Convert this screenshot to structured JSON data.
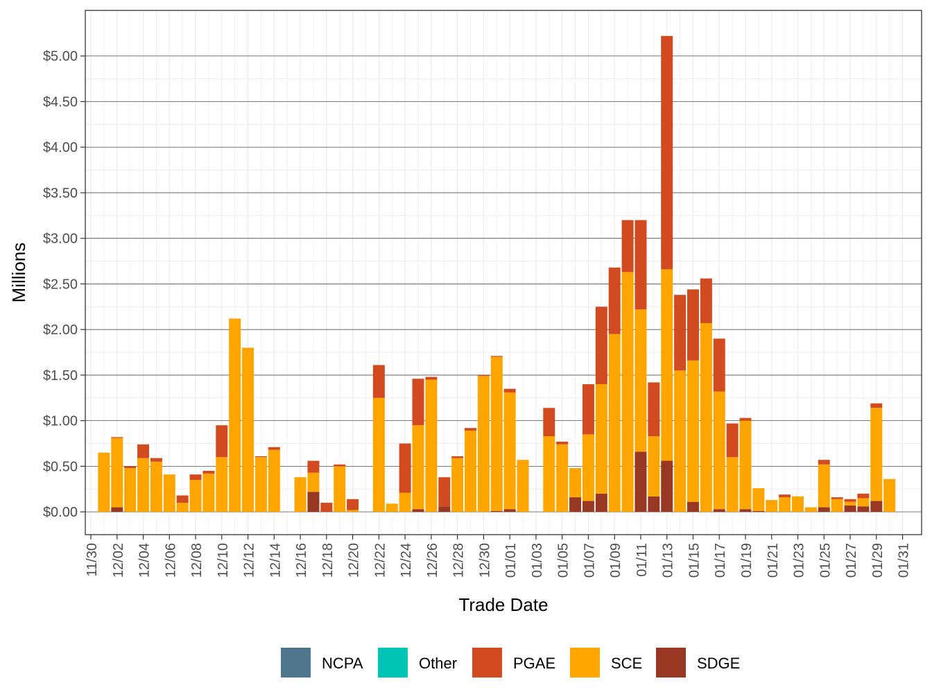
{
  "chart_data": {
    "type": "bar",
    "stacked": true,
    "xlabel": "Trade Date",
    "ylabel": "Millions",
    "ylim": [
      -0.25,
      5.5
    ],
    "y_ticks": [
      0,
      0.5,
      1,
      1.5,
      2,
      2.5,
      3,
      3.5,
      4,
      4.5,
      5
    ],
    "y_tick_labels": [
      "$0.00",
      "$0.50",
      "$1.00",
      "$1.50",
      "$2.00",
      "$2.50",
      "$3.00",
      "$3.50",
      "$4.00",
      "$4.50",
      "$5.00"
    ],
    "x_tick_labels": [
      "11/30",
      "12/02",
      "12/04",
      "12/06",
      "12/08",
      "12/10",
      "12/12",
      "12/14",
      "12/16",
      "12/18",
      "12/20",
      "12/22",
      "12/24",
      "12/26",
      "12/28",
      "12/30",
      "01/01",
      "01/03",
      "01/05",
      "01/07",
      "01/09",
      "01/11",
      "01/13",
      "01/15",
      "01/17",
      "01/19",
      "01/21",
      "01/23",
      "01/25",
      "01/27",
      "01/29",
      "01/31"
    ],
    "grid": true,
    "legend_position": "bottom",
    "colors": {
      "NCPA": "#4e758c",
      "Other": "#00c5b5",
      "PGAE": "#d24b20",
      "SCE": "#ffa500",
      "SDGE": "#983822"
    },
    "categories": [
      "12/01",
      "12/02",
      "12/03",
      "12/04",
      "12/05",
      "12/06",
      "12/07",
      "12/08",
      "12/09",
      "12/10",
      "12/11",
      "12/12",
      "12/13",
      "12/14",
      "12/15",
      "12/16",
      "12/17",
      "12/18",
      "12/19",
      "12/20",
      "12/21",
      "12/22",
      "12/23",
      "12/24",
      "12/25",
      "12/26",
      "12/27",
      "12/28",
      "12/29",
      "12/30",
      "12/31",
      "01/01",
      "01/02",
      "01/03",
      "01/04",
      "01/05",
      "01/06",
      "01/07",
      "01/08",
      "01/09",
      "01/10",
      "01/11",
      "01/12",
      "01/13",
      "01/14",
      "01/15",
      "01/16",
      "01/17",
      "01/18",
      "01/19",
      "01/20",
      "01/21",
      "01/22",
      "01/23",
      "01/24",
      "01/25",
      "01/26",
      "01/27",
      "01/28",
      "01/29",
      "01/30"
    ],
    "series": [
      {
        "name": "NCPA",
        "values": [
          0,
          0,
          0,
          0,
          0,
          0,
          0,
          0,
          0,
          0,
          0,
          0,
          0,
          0,
          0,
          0,
          0,
          0,
          0,
          0,
          0,
          0,
          0,
          0,
          0,
          0,
          0,
          0,
          0,
          0,
          0,
          0,
          0,
          0,
          0,
          0,
          0,
          0,
          0,
          0,
          0,
          0,
          0,
          0,
          0,
          0,
          0,
          0,
          0,
          0,
          0,
          0,
          0,
          0,
          0,
          0,
          0,
          0,
          0,
          0,
          0
        ]
      },
      {
        "name": "Other",
        "values": [
          0,
          0,
          0,
          0,
          0,
          0,
          0,
          0,
          0,
          0,
          0,
          0,
          0,
          0,
          0,
          0,
          0,
          0,
          0,
          0,
          0,
          0,
          0,
          0,
          0,
          0,
          0,
          0,
          0,
          0,
          0,
          0,
          0,
          0,
          0,
          0,
          0,
          0,
          0,
          0,
          0,
          0,
          0,
          0,
          0,
          0,
          0,
          0,
          0,
          0,
          0,
          0,
          0,
          0,
          0,
          0,
          0,
          0,
          0,
          0,
          0
        ]
      },
      {
        "name": "SDGE",
        "values": [
          0,
          0.05,
          0,
          0,
          0,
          0,
          0,
          0,
          0,
          0,
          0,
          0,
          0,
          0,
          0,
          0,
          0.22,
          0,
          0,
          0,
          0,
          0,
          0,
          0,
          0.03,
          0,
          0.06,
          0,
          0,
          0,
          0.01,
          0.03,
          0,
          0,
          0,
          0,
          0.16,
          0.12,
          0.2,
          0,
          0,
          0.66,
          0.17,
          0.56,
          0,
          0.11,
          0,
          0.03,
          0,
          0.03,
          0.01,
          0,
          0,
          0,
          0,
          0.05,
          0,
          0.07,
          0.06,
          0.12,
          0
        ]
      },
      {
        "name": "SCE",
        "values": [
          0.65,
          0.76,
          0.48,
          0.59,
          0.55,
          0.41,
          0.1,
          0.35,
          0.42,
          0.6,
          2.12,
          1.8,
          0.6,
          0.68,
          0,
          0.38,
          0.21,
          0,
          0.5,
          0.02,
          0,
          1.25,
          0.09,
          0.21,
          0.92,
          1.45,
          0,
          0.59,
          0.89,
          1.49,
          1.69,
          1.28,
          0.57,
          0,
          0.83,
          0.74,
          0.32,
          0.73,
          1.2,
          1.95,
          2.63,
          1.56,
          0.66,
          2.1,
          1.55,
          1.55,
          2.07,
          1.29,
          0.6,
          0.97,
          0.25,
          0.13,
          0.16,
          0.17,
          0.05,
          0.47,
          0.14,
          0.04,
          0.09,
          1.02,
          0.36
        ]
      },
      {
        "name": "PGAE",
        "values": [
          0,
          0.01,
          0.02,
          0.15,
          0.04,
          0,
          0.08,
          0.06,
          0.03,
          0.35,
          0,
          0,
          0.01,
          0.03,
          0,
          0,
          0.13,
          0.1,
          0.02,
          0.12,
          0,
          0.36,
          0,
          0.54,
          0.51,
          0.03,
          0.32,
          0.02,
          0.03,
          0.01,
          0.01,
          0.04,
          0,
          0,
          0.31,
          0.03,
          0,
          0.55,
          0.85,
          0.73,
          0.57,
          0.98,
          0.59,
          2.56,
          0.83,
          0.78,
          0.49,
          0.58,
          0.37,
          0.03,
          0,
          0,
          0.03,
          0,
          0,
          0.05,
          0.02,
          0.03,
          0.05,
          0.05,
          0
        ]
      }
    ]
  }
}
